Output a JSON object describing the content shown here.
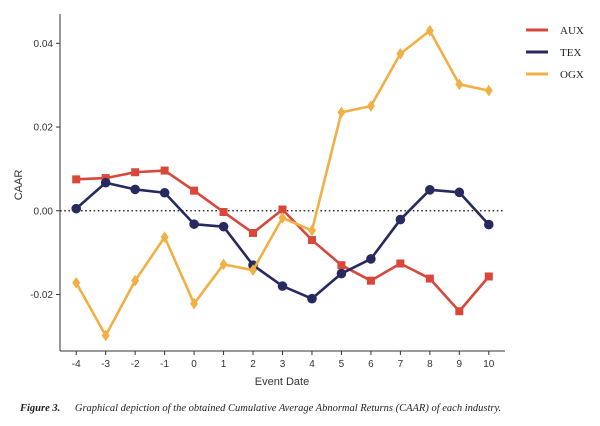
{
  "chart_data": {
    "type": "line",
    "xlabel": "Event Date",
    "ylabel": "CAAR",
    "x": [
      -4,
      -3,
      -2,
      -1,
      0,
      1,
      2,
      3,
      4,
      5,
      6,
      7,
      8,
      9,
      10
    ],
    "x_tick_labels": [
      "-4",
      "-3",
      "-2",
      "-1",
      "0",
      "1",
      "2",
      "3",
      "4",
      "5",
      "6",
      "7",
      "8",
      "9",
      "10"
    ],
    "y_ticks": [
      -0.02,
      0.0,
      0.02,
      0.04
    ],
    "y_tick_labels": [
      "-0.02",
      "0.00",
      "0.02",
      "0.04"
    ],
    "ylim": [
      -0.0335,
      0.047
    ],
    "xlim": [
      -4.55,
      10.55
    ],
    "reference_line": {
      "y": 0,
      "style": "dotted"
    },
    "grid": false,
    "legend_position": "top-right",
    "series": [
      {
        "name": "AUX",
        "color": "#d9473a",
        "marker": "square",
        "values": [
          0.0075,
          0.0078,
          0.0092,
          0.0096,
          0.0048,
          -0.0003,
          -0.0053,
          0.0003,
          -0.007,
          -0.013,
          -0.0167,
          -0.0126,
          -0.0162,
          -0.024,
          -0.0157
        ]
      },
      {
        "name": "TEX",
        "color": "#262a5e",
        "marker": "circle",
        "values": [
          0.0005,
          0.0067,
          0.0051,
          0.0043,
          -0.0032,
          -0.0038,
          -0.013,
          -0.018,
          -0.021,
          -0.015,
          -0.0115,
          -0.0021,
          0.005,
          0.0044,
          -0.0033
        ]
      },
      {
        "name": "OGX",
        "color": "#f0b045",
        "marker": "diamond",
        "values": [
          -0.0172,
          -0.0298,
          -0.0167,
          -0.0063,
          -0.0222,
          -0.0128,
          -0.0142,
          -0.0017,
          -0.0047,
          0.0235,
          0.025,
          0.0375,
          0.043,
          0.0302,
          0.0287
        ]
      }
    ]
  },
  "caption": {
    "label": "Figure 3.",
    "text": "Graphical depiction of the obtained Cumulative Average Abnormal Returns (CAAR) of each industry."
  }
}
